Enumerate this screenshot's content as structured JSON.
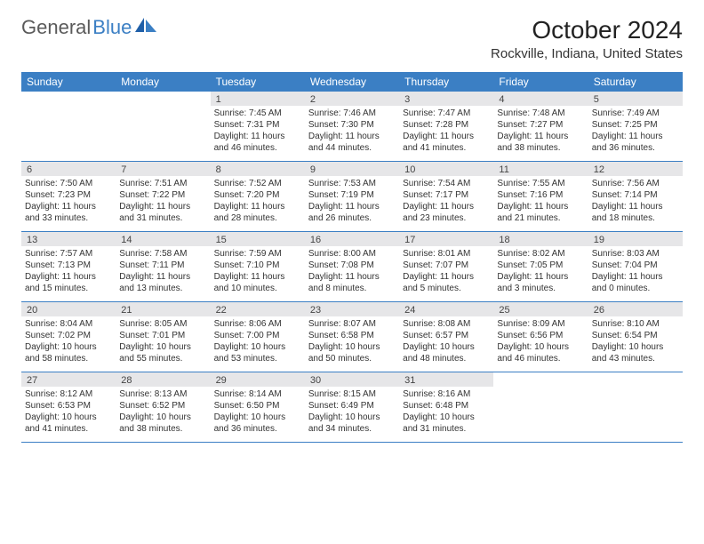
{
  "logo": {
    "text1": "General",
    "text2": "Blue"
  },
  "title": "October 2024",
  "subtitle": "Rockville, Indiana, United States",
  "colors": {
    "header_bg": "#3b7fc4",
    "header_text": "#ffffff",
    "daynum_bg": "#e6e6e8",
    "text": "#333333",
    "page_bg": "#ffffff",
    "logo_gray": "#5a5a5a",
    "logo_blue": "#3b7fc4"
  },
  "weekdays": [
    "Sunday",
    "Monday",
    "Tuesday",
    "Wednesday",
    "Thursday",
    "Friday",
    "Saturday"
  ],
  "weeks": [
    [
      {
        "empty": true
      },
      {
        "empty": true
      },
      {
        "num": "1",
        "sunrise": "Sunrise: 7:45 AM",
        "sunset": "Sunset: 7:31 PM",
        "day1": "Daylight: 11 hours",
        "day2": "and 46 minutes."
      },
      {
        "num": "2",
        "sunrise": "Sunrise: 7:46 AM",
        "sunset": "Sunset: 7:30 PM",
        "day1": "Daylight: 11 hours",
        "day2": "and 44 minutes."
      },
      {
        "num": "3",
        "sunrise": "Sunrise: 7:47 AM",
        "sunset": "Sunset: 7:28 PM",
        "day1": "Daylight: 11 hours",
        "day2": "and 41 minutes."
      },
      {
        "num": "4",
        "sunrise": "Sunrise: 7:48 AM",
        "sunset": "Sunset: 7:27 PM",
        "day1": "Daylight: 11 hours",
        "day2": "and 38 minutes."
      },
      {
        "num": "5",
        "sunrise": "Sunrise: 7:49 AM",
        "sunset": "Sunset: 7:25 PM",
        "day1": "Daylight: 11 hours",
        "day2": "and 36 minutes."
      }
    ],
    [
      {
        "num": "6",
        "sunrise": "Sunrise: 7:50 AM",
        "sunset": "Sunset: 7:23 PM",
        "day1": "Daylight: 11 hours",
        "day2": "and 33 minutes."
      },
      {
        "num": "7",
        "sunrise": "Sunrise: 7:51 AM",
        "sunset": "Sunset: 7:22 PM",
        "day1": "Daylight: 11 hours",
        "day2": "and 31 minutes."
      },
      {
        "num": "8",
        "sunrise": "Sunrise: 7:52 AM",
        "sunset": "Sunset: 7:20 PM",
        "day1": "Daylight: 11 hours",
        "day2": "and 28 minutes."
      },
      {
        "num": "9",
        "sunrise": "Sunrise: 7:53 AM",
        "sunset": "Sunset: 7:19 PM",
        "day1": "Daylight: 11 hours",
        "day2": "and 26 minutes."
      },
      {
        "num": "10",
        "sunrise": "Sunrise: 7:54 AM",
        "sunset": "Sunset: 7:17 PM",
        "day1": "Daylight: 11 hours",
        "day2": "and 23 minutes."
      },
      {
        "num": "11",
        "sunrise": "Sunrise: 7:55 AM",
        "sunset": "Sunset: 7:16 PM",
        "day1": "Daylight: 11 hours",
        "day2": "and 21 minutes."
      },
      {
        "num": "12",
        "sunrise": "Sunrise: 7:56 AM",
        "sunset": "Sunset: 7:14 PM",
        "day1": "Daylight: 11 hours",
        "day2": "and 18 minutes."
      }
    ],
    [
      {
        "num": "13",
        "sunrise": "Sunrise: 7:57 AM",
        "sunset": "Sunset: 7:13 PM",
        "day1": "Daylight: 11 hours",
        "day2": "and 15 minutes."
      },
      {
        "num": "14",
        "sunrise": "Sunrise: 7:58 AM",
        "sunset": "Sunset: 7:11 PM",
        "day1": "Daylight: 11 hours",
        "day2": "and 13 minutes."
      },
      {
        "num": "15",
        "sunrise": "Sunrise: 7:59 AM",
        "sunset": "Sunset: 7:10 PM",
        "day1": "Daylight: 11 hours",
        "day2": "and 10 minutes."
      },
      {
        "num": "16",
        "sunrise": "Sunrise: 8:00 AM",
        "sunset": "Sunset: 7:08 PM",
        "day1": "Daylight: 11 hours",
        "day2": "and 8 minutes."
      },
      {
        "num": "17",
        "sunrise": "Sunrise: 8:01 AM",
        "sunset": "Sunset: 7:07 PM",
        "day1": "Daylight: 11 hours",
        "day2": "and 5 minutes."
      },
      {
        "num": "18",
        "sunrise": "Sunrise: 8:02 AM",
        "sunset": "Sunset: 7:05 PM",
        "day1": "Daylight: 11 hours",
        "day2": "and 3 minutes."
      },
      {
        "num": "19",
        "sunrise": "Sunrise: 8:03 AM",
        "sunset": "Sunset: 7:04 PM",
        "day1": "Daylight: 11 hours",
        "day2": "and 0 minutes."
      }
    ],
    [
      {
        "num": "20",
        "sunrise": "Sunrise: 8:04 AM",
        "sunset": "Sunset: 7:02 PM",
        "day1": "Daylight: 10 hours",
        "day2": "and 58 minutes."
      },
      {
        "num": "21",
        "sunrise": "Sunrise: 8:05 AM",
        "sunset": "Sunset: 7:01 PM",
        "day1": "Daylight: 10 hours",
        "day2": "and 55 minutes."
      },
      {
        "num": "22",
        "sunrise": "Sunrise: 8:06 AM",
        "sunset": "Sunset: 7:00 PM",
        "day1": "Daylight: 10 hours",
        "day2": "and 53 minutes."
      },
      {
        "num": "23",
        "sunrise": "Sunrise: 8:07 AM",
        "sunset": "Sunset: 6:58 PM",
        "day1": "Daylight: 10 hours",
        "day2": "and 50 minutes."
      },
      {
        "num": "24",
        "sunrise": "Sunrise: 8:08 AM",
        "sunset": "Sunset: 6:57 PM",
        "day1": "Daylight: 10 hours",
        "day2": "and 48 minutes."
      },
      {
        "num": "25",
        "sunrise": "Sunrise: 8:09 AM",
        "sunset": "Sunset: 6:56 PM",
        "day1": "Daylight: 10 hours",
        "day2": "and 46 minutes."
      },
      {
        "num": "26",
        "sunrise": "Sunrise: 8:10 AM",
        "sunset": "Sunset: 6:54 PM",
        "day1": "Daylight: 10 hours",
        "day2": "and 43 minutes."
      }
    ],
    [
      {
        "num": "27",
        "sunrise": "Sunrise: 8:12 AM",
        "sunset": "Sunset: 6:53 PM",
        "day1": "Daylight: 10 hours",
        "day2": "and 41 minutes."
      },
      {
        "num": "28",
        "sunrise": "Sunrise: 8:13 AM",
        "sunset": "Sunset: 6:52 PM",
        "day1": "Daylight: 10 hours",
        "day2": "and 38 minutes."
      },
      {
        "num": "29",
        "sunrise": "Sunrise: 8:14 AM",
        "sunset": "Sunset: 6:50 PM",
        "day1": "Daylight: 10 hours",
        "day2": "and 36 minutes."
      },
      {
        "num": "30",
        "sunrise": "Sunrise: 8:15 AM",
        "sunset": "Sunset: 6:49 PM",
        "day1": "Daylight: 10 hours",
        "day2": "and 34 minutes."
      },
      {
        "num": "31",
        "sunrise": "Sunrise: 8:16 AM",
        "sunset": "Sunset: 6:48 PM",
        "day1": "Daylight: 10 hours",
        "day2": "and 31 minutes."
      },
      {
        "empty": true
      },
      {
        "empty": true
      }
    ]
  ]
}
